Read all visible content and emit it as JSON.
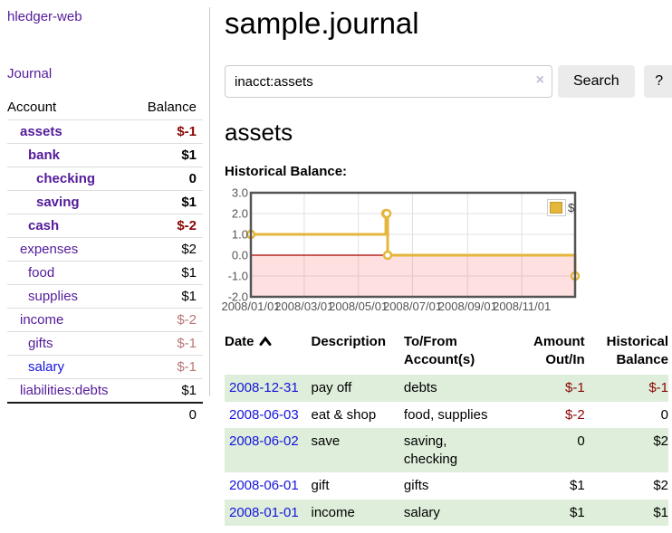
{
  "colors": {
    "link_purple": "#541b9b",
    "link_blue": "#1414dd",
    "negative": "#8b0505",
    "negative_muted": "#b97676",
    "row_stripe_green": "#deeeda",
    "series_gold": "#e4b63c",
    "chart_negative_region": "#fbdcdc",
    "chart_zero_line": "#a80000",
    "button_gray": "#ebebeb"
  },
  "app": {
    "title": "hledger-web"
  },
  "sidebar": {
    "journal_link": "Journal",
    "account_header": "Account",
    "balance_header": "Balance",
    "accounts": [
      {
        "name": "assets",
        "balance": "$-1",
        "depth": 0,
        "bold": true,
        "negative": true,
        "muted": false,
        "link": "purple"
      },
      {
        "name": "bank",
        "balance": "$1",
        "depth": 1,
        "bold": true,
        "negative": false,
        "muted": false,
        "link": "purple"
      },
      {
        "name": "checking",
        "balance": "0",
        "depth": 2,
        "bold": true,
        "negative": false,
        "muted": false,
        "link": "purple"
      },
      {
        "name": "saving",
        "balance": "$1",
        "depth": 2,
        "bold": true,
        "negative": false,
        "muted": false,
        "link": "purple"
      },
      {
        "name": "cash",
        "balance": "$-2",
        "depth": 1,
        "bold": true,
        "negative": true,
        "muted": false,
        "link": "purple"
      },
      {
        "name": "expenses",
        "balance": "$2",
        "depth": 0,
        "bold": false,
        "negative": false,
        "muted": false,
        "link": "purple"
      },
      {
        "name": "food",
        "balance": "$1",
        "depth": 1,
        "bold": false,
        "negative": false,
        "muted": false,
        "link": "purple"
      },
      {
        "name": "supplies",
        "balance": "$1",
        "depth": 1,
        "bold": false,
        "negative": false,
        "muted": false,
        "link": "purple"
      },
      {
        "name": "income",
        "balance": "$-2",
        "depth": 0,
        "bold": false,
        "negative": true,
        "muted": true,
        "link": "purple"
      },
      {
        "name": "gifts",
        "balance": "$-1",
        "depth": 1,
        "bold": false,
        "negative": true,
        "muted": true,
        "link": "purple"
      },
      {
        "name": "salary",
        "balance": "$-1",
        "depth": 1,
        "bold": false,
        "negative": true,
        "muted": true,
        "link": "blue"
      },
      {
        "name": "liabilities:debts",
        "balance": "$1",
        "depth": 0,
        "bold": false,
        "negative": false,
        "muted": false,
        "link": "purple"
      }
    ],
    "total": "0"
  },
  "main": {
    "title": "sample.journal",
    "search": {
      "value": "inacct:assets",
      "clear_icon": "×",
      "search_button": "Search",
      "help_button": "?"
    },
    "account_heading": "assets",
    "chart_heading": "Historical Balance:"
  },
  "chart_data": {
    "type": "line",
    "step": true,
    "title": "Historical Balance:",
    "series": [
      {
        "name": "$",
        "color": "#e4b63c",
        "points": [
          [
            "2008-01-01",
            1
          ],
          [
            "2008-06-01",
            2
          ],
          [
            "2008-06-02",
            2
          ],
          [
            "2008-06-03",
            0
          ],
          [
            "2008-12-31",
            -1
          ]
        ]
      }
    ],
    "x_ticks": [
      "2008/01/01",
      "2008/03/01",
      "2008/05/01",
      "2008/07/01",
      "2008/09/01",
      "2008/11/01"
    ],
    "y_ticks": [
      "3.0",
      "2.0",
      "1.0",
      "0.0",
      "-1.0",
      "-2.0"
    ],
    "ylim": [
      -2,
      3
    ],
    "xlim": [
      "2008-01-01",
      "2008-12-31"
    ],
    "grid": true,
    "negative_region_shaded": true,
    "legend": {
      "label": "$",
      "position": "top-right"
    }
  },
  "register": {
    "headers": [
      {
        "lines": [
          "Date"
        ],
        "sort_icon": true,
        "align": "left"
      },
      {
        "lines": [
          "Description"
        ],
        "sort_icon": false,
        "align": "left"
      },
      {
        "lines": [
          "To/From",
          "Account(s)"
        ],
        "sort_icon": false,
        "align": "left"
      },
      {
        "lines": [
          "Amount",
          "Out/In"
        ],
        "sort_icon": false,
        "align": "right"
      },
      {
        "lines": [
          "Historical",
          "Balance"
        ],
        "sort_icon": false,
        "align": "right"
      }
    ],
    "rows": [
      {
        "date": "2008-12-31",
        "description": "pay off",
        "accounts": "debts",
        "accounts_wrapped": false,
        "amount": "$-1",
        "amount_negative": true,
        "balance": "$-1",
        "balance_negative": true
      },
      {
        "date": "2008-06-03",
        "description": "eat & shop",
        "accounts": "food, supplies",
        "accounts_wrapped": false,
        "amount": "$-2",
        "amount_negative": true,
        "balance": "0",
        "balance_negative": false
      },
      {
        "date": "2008-06-02",
        "description": "save",
        "accounts": "saving, checking",
        "accounts_wrapped": true,
        "amount": "0",
        "amount_negative": false,
        "balance": "$2",
        "balance_negative": false
      },
      {
        "date": "2008-06-01",
        "description": "gift",
        "accounts": "gifts",
        "accounts_wrapped": false,
        "amount": "$1",
        "amount_negative": false,
        "balance": "$2",
        "balance_negative": false
      },
      {
        "date": "2008-01-01",
        "description": "income",
        "accounts": "salary",
        "accounts_wrapped": false,
        "amount": "$1",
        "amount_negative": false,
        "balance": "$1",
        "balance_negative": false
      }
    ]
  }
}
